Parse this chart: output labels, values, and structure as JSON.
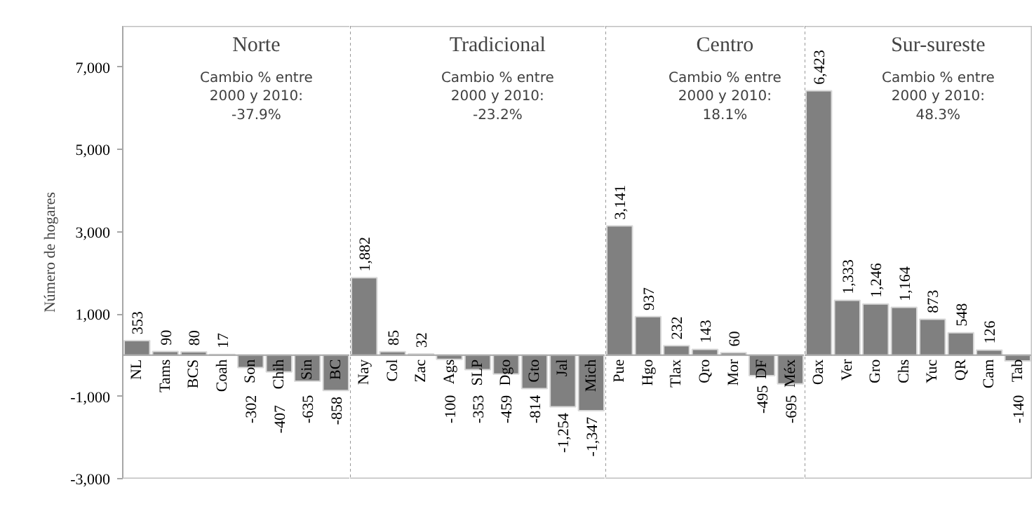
{
  "chart_data": [
    {
      "type": "bar",
      "title": "Norte",
      "ylabel": "Número de hogares",
      "categories": [
        "NL",
        "Tams",
        "BCS",
        "Coah",
        "Son",
        "Chih",
        "Sin",
        "BC"
      ],
      "values": [
        353,
        90,
        80,
        17,
        -302,
        -407,
        -635,
        -858
      ],
      "color": "#808080",
      "ylim": [
        -3000,
        8000
      ],
      "yticks": [
        {
          "value": -3000,
          "label": "-3,000"
        },
        {
          "value": -1000,
          "label": "-1,000"
        },
        {
          "value": 1000,
          "label": "1,000"
        },
        {
          "value": 3000,
          "label": "3,000"
        },
        {
          "value": 5000,
          "label": "5,000"
        },
        {
          "value": 7000,
          "label": "7,000"
        }
      ],
      "data_labels": true,
      "grid": false,
      "annotations": [
        "Cambio % entre\n2000 y 2010:\n-37.9%"
      ]
    },
    {
      "type": "bar",
      "title": "Tradicional",
      "categories": [
        "Nay",
        "Col",
        "Zac",
        "Ags",
        "SLP",
        "Dgo",
        "Gto",
        "Jal",
        "Mich"
      ],
      "values": [
        1882,
        85,
        32,
        -100,
        -353,
        -459,
        -814,
        -1254,
        -1347
      ],
      "value_labels": [
        "1,882",
        "85",
        "32",
        "-100",
        "-353",
        "-459",
        "-814",
        "-1,254",
        "-1,347"
      ],
      "color": "#808080",
      "ylim": [
        -3000,
        8000
      ],
      "tick_labels": "x",
      "grid": false,
      "annotations": [
        "Cambio % entre\n2000 y 2010:\n-23.2%"
      ]
    },
    {
      "type": "bar",
      "title": "Centro",
      "categories": [
        "Pue",
        "Hgo",
        "Tlax",
        "Qro",
        "Mor",
        "DF",
        "Méx"
      ],
      "values": [
        3141,
        937,
        232,
        143,
        60,
        -495,
        -695
      ],
      "value_labels": [
        "3,141",
        "937",
        "232",
        "143",
        "60",
        "-495",
        "-695"
      ],
      "color": "#808080",
      "ylim": [
        -3000,
        8000
      ],
      "tick_labels": "x",
      "grid": false,
      "annotations": [
        "Cambio % entre\n2000 y 2010:\n18.1%"
      ]
    },
    {
      "type": "bar",
      "title": "Sur-sureste",
      "categories": [
        "Oax",
        "Ver",
        "Gro",
        "Chs",
        "Yuc",
        "QR",
        "Cam",
        "Tab"
      ],
      "values": [
        6423,
        1333,
        1246,
        1164,
        873,
        548,
        126,
        -140
      ],
      "value_labels": [
        "6,423",
        "1,333",
        "1,246",
        "1,164",
        "873",
        "548",
        "126",
        "-140"
      ],
      "color": "#808080",
      "ylim": [
        -3000,
        8000
      ],
      "tick_labels": "x",
      "grid": false,
      "annotations": [
        "Cambio % entre\n2000 y 2010:\n48.3%"
      ]
    }
  ]
}
